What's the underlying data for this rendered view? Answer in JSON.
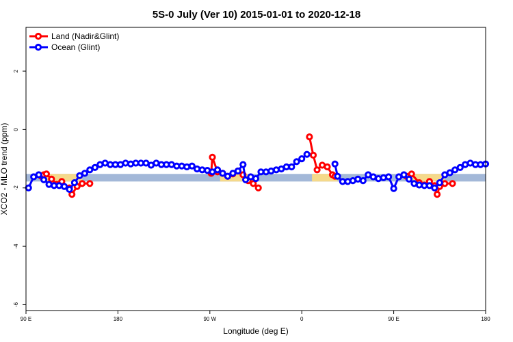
{
  "chart_data": {
    "type": "line",
    "title": "5S-0 July (Ver 10)   2015-01-01 to 2020-12-18",
    "xlabel": "Longitude (deg E)",
    "ylabel": "XCO2 - MLO trend (ppm)",
    "xlim": [
      0,
      360
    ],
    "ylim": [
      -6.2,
      3.5
    ],
    "x_ticks": [
      {
        "value": 0,
        "label": "90 E"
      },
      {
        "value": 72,
        "label": "180"
      },
      {
        "value": 144,
        "label": "90 W"
      },
      {
        "value": 216,
        "label": "0"
      },
      {
        "value": 288,
        "label": "90 E"
      },
      {
        "value": 360,
        "label": "180"
      }
    ],
    "y_ticks": [
      {
        "value": 2,
        "label": "2"
      },
      {
        "value": 0,
        "label": "0"
      },
      {
        "value": -2,
        "label": "-2"
      },
      {
        "value": -4,
        "label": "-4"
      },
      {
        "value": -6,
        "label": "-6"
      }
    ],
    "band": {
      "y_range": [
        -1.78,
        -1.52
      ],
      "color": "#a3b8d8"
    },
    "land_patches": {
      "color": "#f5d98a",
      "y_range": [
        -1.78,
        -1.52
      ],
      "x_ranges": [
        [
          16,
          44
        ],
        [
          152,
          176
        ],
        [
          224,
          244
        ],
        [
          300,
          328
        ]
      ]
    },
    "legend": {
      "position": "top-left"
    },
    "series": [
      {
        "name": "Land (Nadir&Glint)",
        "color": "#ff0000",
        "segments": [
          [
            [
              12,
              -1.6
            ],
            [
              14,
              -1.55
            ],
            [
              16,
              -1.52
            ],
            [
              20,
              -1.7
            ],
            [
              24,
              -1.88
            ],
            [
              28,
              -1.78
            ],
            [
              34,
              -2.0
            ],
            [
              36,
              -2.22
            ],
            [
              40,
              -1.95
            ],
            [
              44,
              -1.85
            ],
            [
              50,
              -1.85
            ]
          ],
          [
            [
              145,
              -1.5
            ],
            [
              146,
              -0.95
            ],
            [
              150,
              -1.45
            ],
            [
              154,
              -1.5
            ],
            [
              158,
              -1.6
            ],
            [
              162,
              -1.52
            ],
            [
              166,
              -1.42
            ],
            [
              170,
              -1.55
            ],
            [
              174,
              -1.75
            ],
            [
              178,
              -1.85
            ],
            [
              182,
              -2.0
            ]
          ],
          [
            [
              222,
              -0.25
            ],
            [
              225,
              -0.88
            ],
            [
              228,
              -1.38
            ],
            [
              232,
              -1.22
            ],
            [
              236,
              -1.28
            ],
            [
              240,
              -1.55
            ],
            [
              242,
              -1.6
            ]
          ],
          [
            [
              298,
              -1.6
            ],
            [
              302,
              -1.52
            ],
            [
              308,
              -1.82
            ],
            [
              312,
              -1.9
            ],
            [
              316,
              -1.78
            ],
            [
              320,
              -1.92
            ],
            [
              322,
              -2.22
            ],
            [
              324,
              -1.95
            ],
            [
              328,
              -1.85
            ],
            [
              334,
              -1.85
            ]
          ]
        ]
      },
      {
        "name": "Ocean (Glint)",
        "color": "#0000ff",
        "segments": [
          [
            [
              2,
              -2.0
            ],
            [
              6,
              -1.62
            ],
            [
              10,
              -1.55
            ],
            [
              14,
              -1.72
            ],
            [
              18,
              -1.88
            ],
            [
              22,
              -1.92
            ],
            [
              26,
              -1.92
            ],
            [
              30,
              -1.95
            ],
            [
              34,
              -2.05
            ],
            [
              38,
              -1.82
            ],
            [
              42,
              -1.58
            ],
            [
              46,
              -1.5
            ],
            [
              50,
              -1.38
            ],
            [
              54,
              -1.3
            ],
            [
              58,
              -1.2
            ],
            [
              62,
              -1.15
            ],
            [
              66,
              -1.2
            ],
            [
              70,
              -1.2
            ],
            [
              74,
              -1.2
            ],
            [
              78,
              -1.15
            ],
            [
              82,
              -1.18
            ],
            [
              86,
              -1.15
            ],
            [
              90,
              -1.15
            ],
            [
              94,
              -1.15
            ],
            [
              98,
              -1.22
            ],
            [
              102,
              -1.15
            ],
            [
              106,
              -1.2
            ],
            [
              110,
              -1.2
            ],
            [
              114,
              -1.2
            ],
            [
              118,
              -1.25
            ],
            [
              122,
              -1.25
            ],
            [
              126,
              -1.28
            ],
            [
              130,
              -1.25
            ],
            [
              134,
              -1.35
            ],
            [
              138,
              -1.38
            ],
            [
              142,
              -1.4
            ],
            [
              146,
              -1.45
            ],
            [
              150,
              -1.38
            ],
            [
              154,
              -1.5
            ],
            [
              158,
              -1.6
            ],
            [
              162,
              -1.5
            ],
            [
              166,
              -1.42
            ],
            [
              170,
              -1.2
            ],
            [
              172,
              -1.72
            ],
            [
              176,
              -1.62
            ],
            [
              180,
              -1.68
            ],
            [
              184,
              -1.45
            ],
            [
              188,
              -1.45
            ],
            [
              192,
              -1.42
            ],
            [
              196,
              -1.38
            ],
            [
              200,
              -1.35
            ],
            [
              204,
              -1.28
            ],
            [
              208,
              -1.28
            ],
            [
              212,
              -1.1
            ],
            [
              216,
              -1.0
            ],
            [
              220,
              -0.85
            ]
          ],
          [
            [
              242,
              -1.18
            ],
            [
              244,
              -1.6
            ],
            [
              248,
              -1.78
            ],
            [
              252,
              -1.78
            ],
            [
              256,
              -1.75
            ],
            [
              260,
              -1.7
            ],
            [
              264,
              -1.75
            ],
            [
              268,
              -1.55
            ],
            [
              272,
              -1.62
            ],
            [
              276,
              -1.68
            ],
            [
              280,
              -1.65
            ],
            [
              284,
              -1.62
            ],
            [
              288,
              -2.02
            ],
            [
              292,
              -1.62
            ],
            [
              296,
              -1.55
            ],
            [
              300,
              -1.7
            ],
            [
              304,
              -1.85
            ],
            [
              308,
              -1.9
            ],
            [
              312,
              -1.92
            ],
            [
              316,
              -1.92
            ],
            [
              320,
              -2.0
            ],
            [
              324,
              -1.82
            ],
            [
              328,
              -1.55
            ],
            [
              332,
              -1.48
            ],
            [
              336,
              -1.38
            ],
            [
              340,
              -1.3
            ],
            [
              344,
              -1.2
            ],
            [
              348,
              -1.15
            ],
            [
              352,
              -1.2
            ],
            [
              356,
              -1.2
            ],
            [
              360,
              -1.18
            ]
          ]
        ]
      }
    ]
  }
}
